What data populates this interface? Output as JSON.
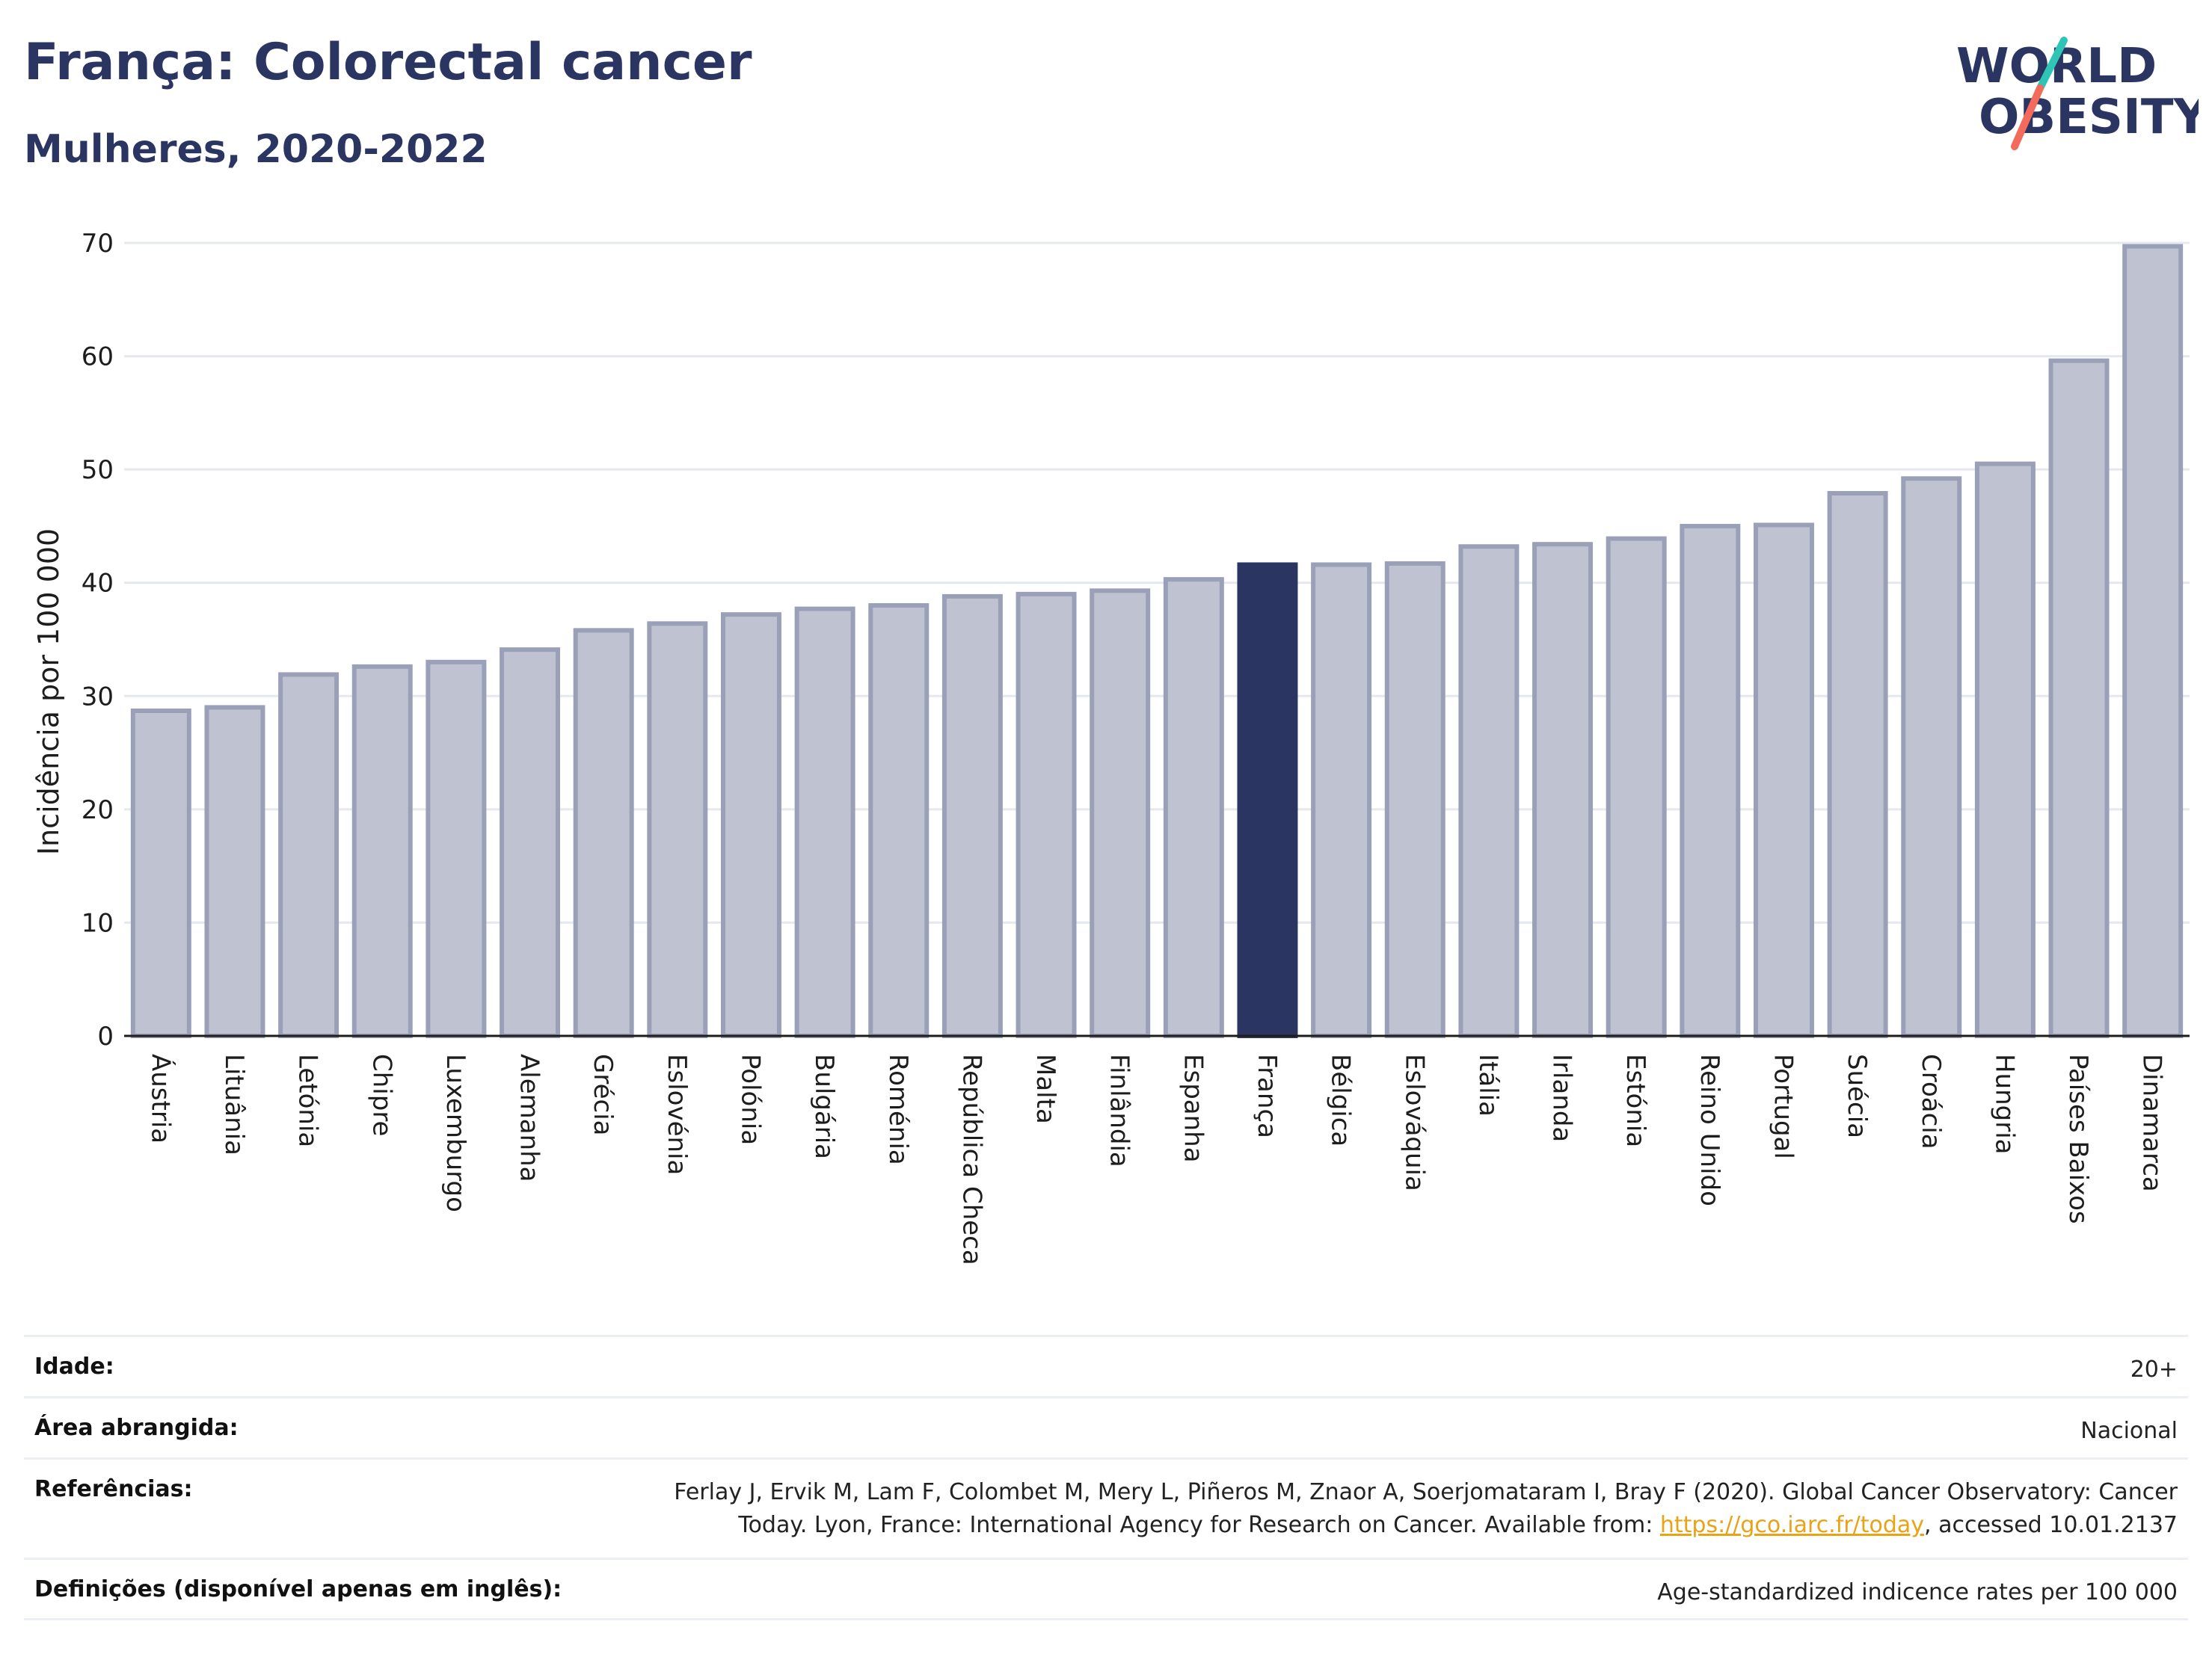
{
  "header": {
    "title": "França: Colorectal cancer",
    "subtitle": "Mulheres, 2020-2022"
  },
  "logo": {
    "line1": "WORLD",
    "line2": "OBESITY",
    "colors": {
      "text": "#2b3562",
      "slash_top": "#2ec4b6",
      "slash_bottom": "#f26b5b"
    }
  },
  "colors": {
    "bar_fill": "#bfc3d1",
    "bar_stroke": "#9aa0b8",
    "highlight": "#2b3562",
    "gridline": "#e6e8ef",
    "axis": "#1d1d1d"
  },
  "chart_data": {
    "type": "bar",
    "title": "França: Colorectal cancer",
    "subtitle": "Mulheres, 2020-2022",
    "ylabel": "Incidência por 100 000",
    "xlabel": "",
    "ylim": [
      0,
      70
    ],
    "yticks": [
      0,
      10,
      20,
      30,
      40,
      50,
      60,
      70
    ],
    "grid": true,
    "highlight": "França",
    "categories": [
      "Áustria",
      "Lituânia",
      "Letónia",
      "Chipre",
      "Luxemburgo",
      "Alemanha",
      "Grécia",
      "Eslovénia",
      "Polónia",
      "Bulgária",
      "Roménia",
      "República Checa",
      "Malta",
      "Finlândia",
      "Espanha",
      "França",
      "Bélgica",
      "Eslováquia",
      "Itália",
      "Irlanda",
      "Estónia",
      "Reino Unido",
      "Portugal",
      "Suécia",
      "Croácia",
      "Hungria",
      "Países Baixos",
      "Dinamarca"
    ],
    "values": [
      28.7,
      29.0,
      31.9,
      32.6,
      33.0,
      34.1,
      35.8,
      36.4,
      37.2,
      37.7,
      38.0,
      38.8,
      39.0,
      39.3,
      40.3,
      41.6,
      41.6,
      41.7,
      43.2,
      43.4,
      43.9,
      45.0,
      45.1,
      47.9,
      49.2,
      50.5,
      59.6,
      69.7
    ]
  },
  "meta": {
    "age_label": "Idade:",
    "age_value": "20+",
    "area_label": "Área abrangida:",
    "area_value": "Nacional",
    "ref_label": "Referências:",
    "ref_line1": "Ferlay J, Ervik M, Lam F, Colombet M, Mery L, Piñeros M, Znaor A, Soerjomataram I, Bray F (2020). Global Cancer Observatory: Cancer",
    "ref_line2_pre": "Today. Lyon, France: International Agency for Research on Cancer. Available from: ",
    "ref_link": "https://gco.iarc.fr/today",
    "ref_line2_post": ", accessed 10.01.2137",
    "def_label": "Definições (disponível apenas em inglês):",
    "def_value": "Age-standardized indicence rates per 100 000"
  }
}
